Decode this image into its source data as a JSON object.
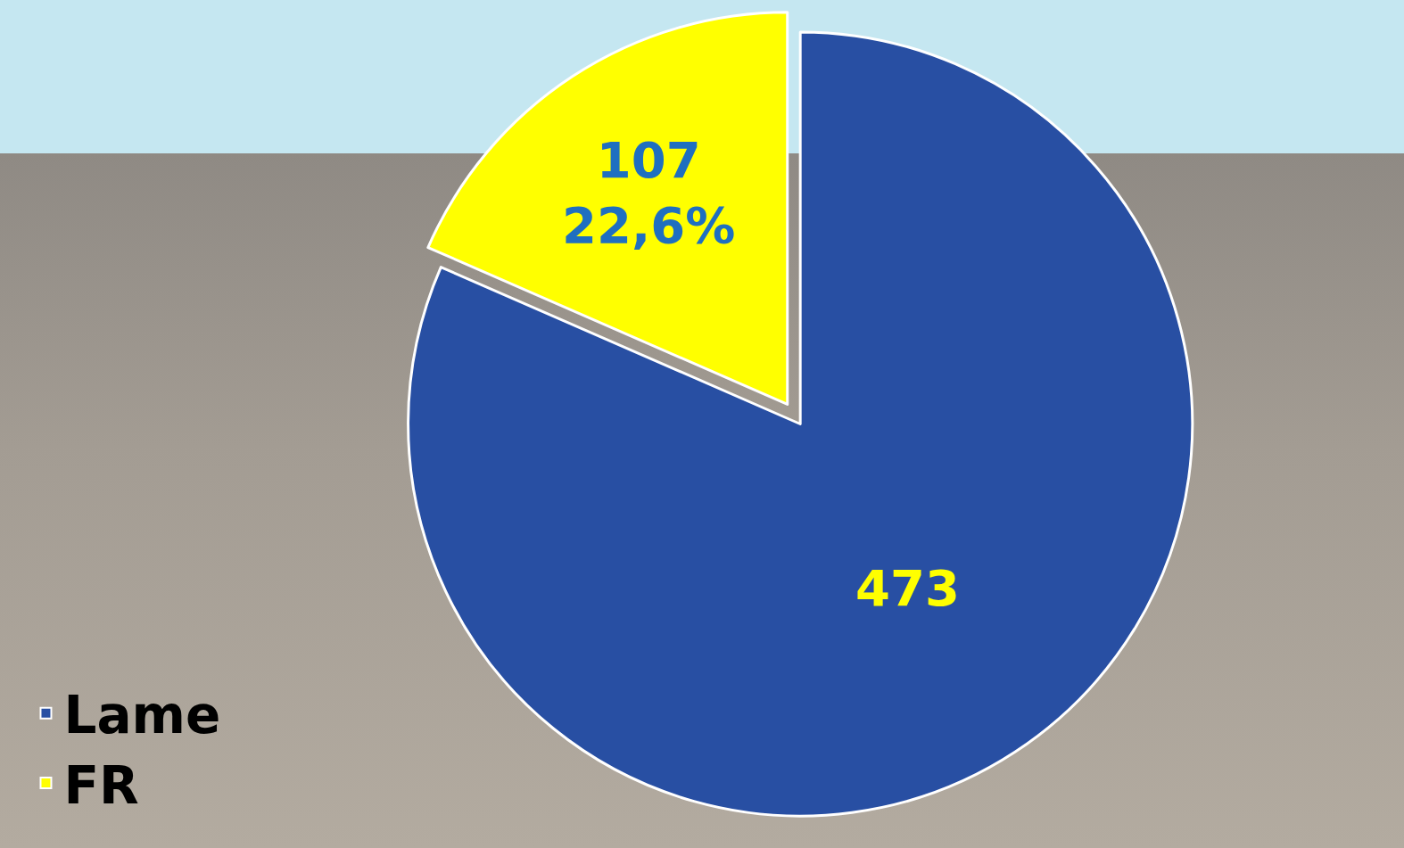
{
  "chart_data": {
    "type": "pie",
    "categories": [
      "Lame",
      "FR"
    ],
    "values": [
      473,
      107
    ],
    "value_labels": [
      "473",
      "107\n22,6%"
    ],
    "colors": [
      "#284fa3",
      "#ffff00"
    ],
    "data_labels": true,
    "legend": "bottom left"
  }
}
